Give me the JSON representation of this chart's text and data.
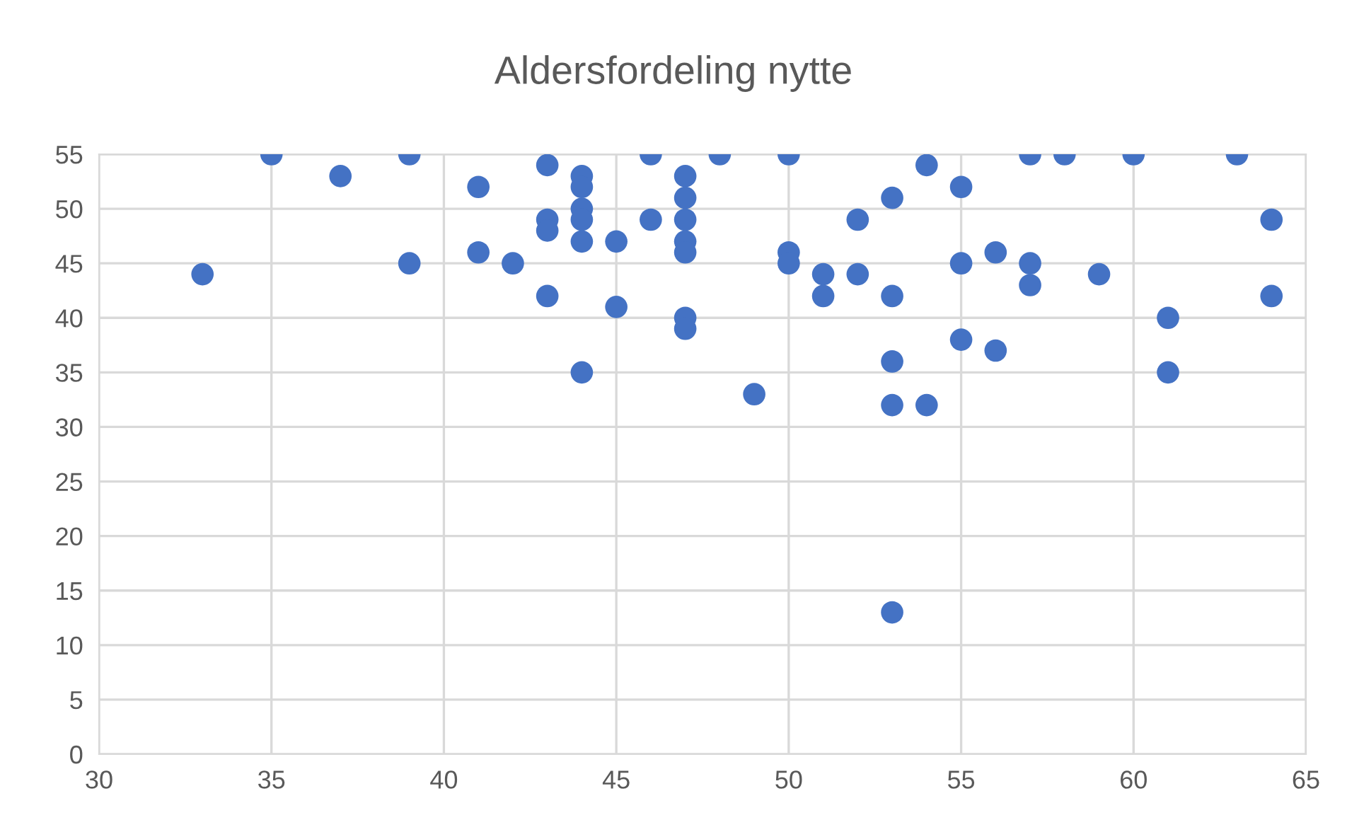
{
  "chart_data": {
    "type": "scatter",
    "title": "Aldersfordeling nytte",
    "color": "#4472c4",
    "marker": "circle",
    "grid": true,
    "x": [
      33,
      35,
      37,
      39,
      39,
      41,
      41,
      42,
      43,
      43,
      43,
      43,
      44,
      44,
      44,
      44,
      44,
      44,
      45,
      45,
      46,
      46,
      47,
      47,
      47,
      47,
      47,
      47,
      47,
      48,
      49,
      50,
      50,
      50,
      51,
      51,
      52,
      52,
      53,
      53,
      53,
      53,
      53,
      54,
      54,
      55,
      55,
      55,
      56,
      56,
      57,
      57,
      57,
      58,
      59,
      60,
      61,
      61,
      63,
      64,
      64
    ],
    "values": [
      44,
      55,
      53,
      55,
      45,
      52,
      46,
      45,
      54,
      49,
      48,
      42,
      53,
      52,
      50,
      49,
      47,
      35,
      47,
      41,
      55,
      49,
      53,
      51,
      49,
      47,
      46,
      40,
      39,
      55,
      33,
      55,
      46,
      45,
      44,
      42,
      49,
      44,
      51,
      42,
      36,
      32,
      13,
      54,
      32,
      52,
      45,
      38,
      46,
      37,
      55,
      45,
      43,
      55,
      44,
      55,
      40,
      35,
      55,
      49,
      42
    ],
    "xlim": [
      30,
      65
    ],
    "xticks": [
      30,
      35,
      40,
      45,
      50,
      55,
      60,
      65
    ],
    "ylim": [
      0,
      55
    ],
    "yticks": [
      0,
      5,
      10,
      15,
      20,
      25,
      30,
      35,
      40,
      45,
      50,
      55
    ]
  }
}
